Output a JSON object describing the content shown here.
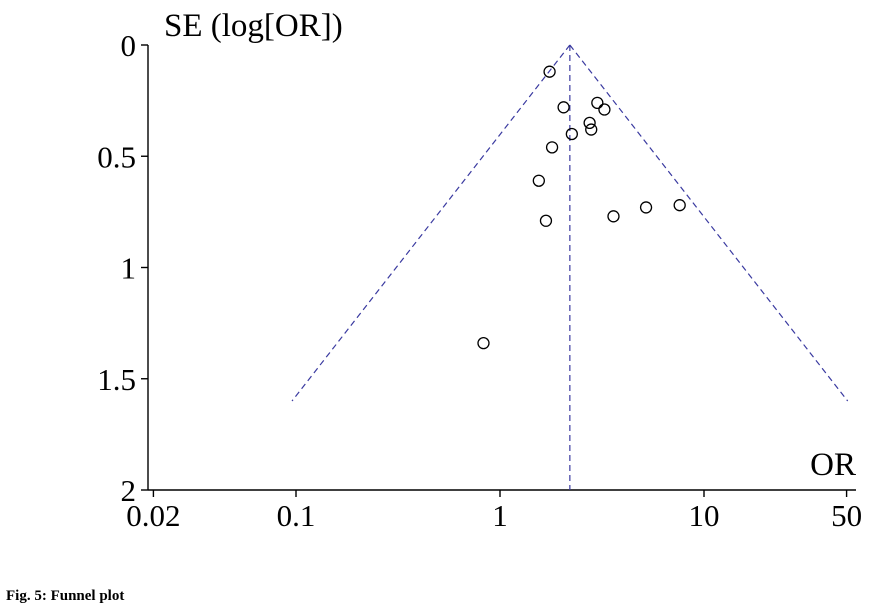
{
  "caption": "Fig. 5: Funnel plot",
  "chart_data": {
    "type": "scatter",
    "ylabel": "SE (log[OR])",
    "xlabel": "OR",
    "x_scale": "log",
    "y_reversed": true,
    "xlim": [
      0.02,
      55
    ],
    "ylim": [
      0,
      2
    ],
    "x_ticks": [
      {
        "value": 0.02,
        "label": "0.02"
      },
      {
        "value": 0.1,
        "label": "0.1"
      },
      {
        "value": 1,
        "label": "1"
      },
      {
        "value": 10,
        "label": "10"
      },
      {
        "value": 50,
        "label": "50"
      }
    ],
    "y_ticks": [
      {
        "value": 0,
        "label": "0"
      },
      {
        "value": 0.5,
        "label": "0.5"
      },
      {
        "value": 1,
        "label": "1"
      },
      {
        "value": 1.5,
        "label": "1.5"
      },
      {
        "value": 2,
        "label": "2"
      }
    ],
    "pooled_or": 2.2,
    "points": [
      {
        "x": 1.75,
        "y": 0.12
      },
      {
        "x": 2.05,
        "y": 0.28
      },
      {
        "x": 3.0,
        "y": 0.26
      },
      {
        "x": 3.25,
        "y": 0.29
      },
      {
        "x": 2.75,
        "y": 0.35
      },
      {
        "x": 2.8,
        "y": 0.38
      },
      {
        "x": 2.25,
        "y": 0.4
      },
      {
        "x": 1.8,
        "y": 0.46
      },
      {
        "x": 1.55,
        "y": 0.61
      },
      {
        "x": 5.2,
        "y": 0.73
      },
      {
        "x": 7.6,
        "y": 0.72
      },
      {
        "x": 3.6,
        "y": 0.77
      },
      {
        "x": 1.68,
        "y": 0.79
      },
      {
        "x": 0.83,
        "y": 1.34
      }
    ],
    "colors": {
      "points": "#000000",
      "axes": "#000000",
      "funnel": "#3a3aa0"
    }
  }
}
